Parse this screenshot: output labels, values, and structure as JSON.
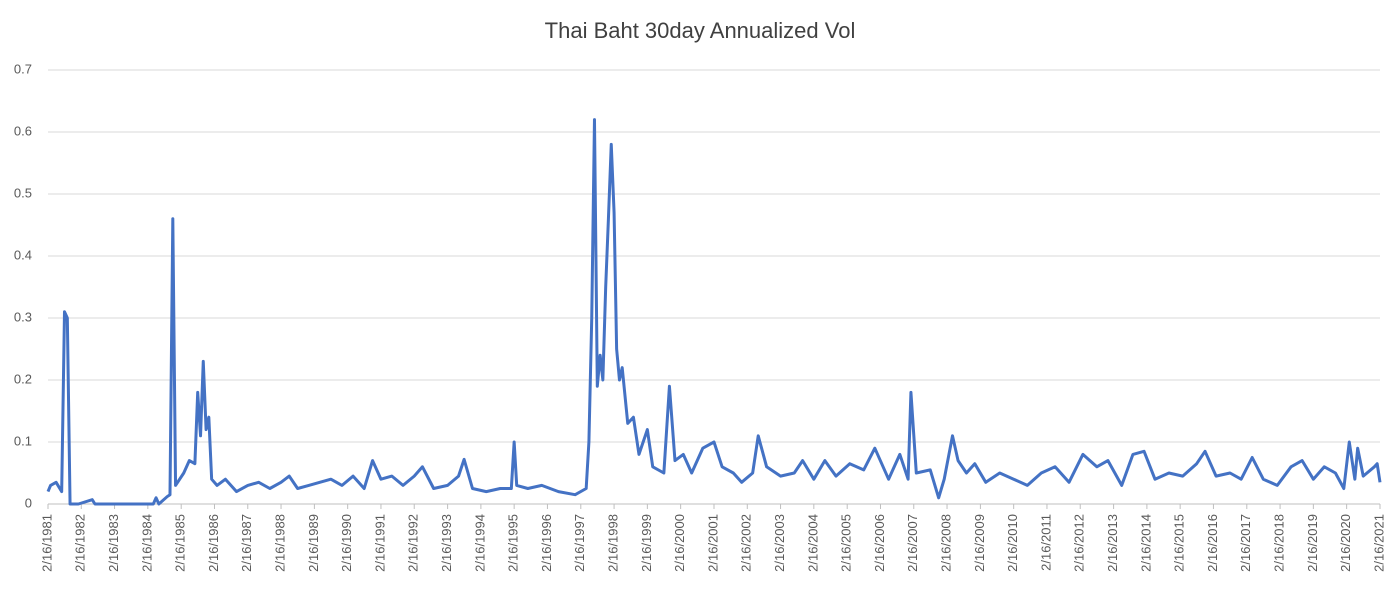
{
  "chart_data": {
    "type": "line",
    "title": "Thai Baht 30day Annualized Vol",
    "x": [
      "2/16/1981",
      "3/16/1981",
      "5/16/1981",
      "7/16/1981",
      "8/16/1981",
      "9/16/1981",
      "10/16/1981",
      "1/16/1982",
      "6/16/1982",
      "7/16/1982",
      "4/16/1984",
      "5/16/1984",
      "6/16/1984",
      "9/16/1984",
      "10/16/1984",
      "11/16/1984",
      "12/16/1984",
      "3/16/1985",
      "5/16/1985",
      "7/16/1985",
      "8/16/1985",
      "9/16/1985",
      "10/16/1985",
      "11/16/1985",
      "12/16/1985",
      "1/16/1986",
      "3/16/1986",
      "6/16/1986",
      "10/16/1986",
      "2/16/1987",
      "6/16/1987",
      "10/16/1987",
      "2/16/1988",
      "5/16/1988",
      "8/16/1988",
      "12/16/1988",
      "4/16/1989",
      "8/16/1989",
      "12/16/1989",
      "4/16/1990",
      "8/16/1990",
      "11/16/1990",
      "2/16/1991",
      "6/16/1991",
      "10/16/1991",
      "2/16/1992",
      "5/16/1992",
      "9/16/1992",
      "2/16/1993",
      "6/16/1993",
      "8/16/1993",
      "11/16/1993",
      "4/16/1994",
      "9/16/1994",
      "1/16/1995",
      "2/16/1995",
      "3/16/1995",
      "7/16/1995",
      "12/16/1995",
      "6/16/1996",
      "12/16/1996",
      "4/16/1997",
      "5/16/1997",
      "6/16/1997",
      "7/16/1997",
      "8/16/1997",
      "9/16/1997",
      "10/16/1997",
      "11/16/1997",
      "12/16/1997",
      "1/16/1998",
      "2/16/1998",
      "3/16/1998",
      "4/16/1998",
      "5/16/1998",
      "7/16/1998",
      "9/16/1998",
      "11/16/1998",
      "2/16/1999",
      "4/16/1999",
      "8/16/1999",
      "10/16/1999",
      "12/16/1999",
      "3/16/2000",
      "6/16/2000",
      "10/16/2000",
      "2/16/2001",
      "5/16/2001",
      "9/16/2001",
      "12/16/2001",
      "4/16/2002",
      "6/16/2002",
      "9/16/2002",
      "2/16/2003",
      "7/16/2003",
      "10/16/2003",
      "2/16/2004",
      "6/16/2004",
      "10/16/2004",
      "3/16/2005",
      "8/16/2005",
      "12/16/2005",
      "5/16/2006",
      "9/16/2006",
      "12/16/2006",
      "1/16/2007",
      "3/16/2007",
      "8/16/2007",
      "11/16/2007",
      "1/16/2008",
      "4/16/2008",
      "6/16/2008",
      "9/16/2008",
      "12/16/2008",
      "4/16/2009",
      "9/16/2009",
      "2/16/2010",
      "7/16/2010",
      "12/16/2010",
      "5/16/2011",
      "10/16/2011",
      "3/16/2012",
      "8/16/2012",
      "12/16/2012",
      "5/16/2013",
      "9/16/2013",
      "1/16/2014",
      "5/16/2014",
      "10/16/2014",
      "3/16/2015",
      "8/16/2015",
      "11/16/2015",
      "3/16/2016",
      "8/16/2016",
      "12/16/2016",
      "4/16/2017",
      "8/16/2017",
      "1/16/2018",
      "6/16/2018",
      "10/16/2018",
      "2/16/2019",
      "6/16/2019",
      "10/16/2019",
      "1/16/2020",
      "3/16/2020",
      "5/16/2020",
      "6/16/2020",
      "8/16/2020",
      "12/16/2020",
      "1/16/2021",
      "2/16/2021"
    ],
    "series": [
      {
        "color": "#4472c4",
        "values": [
          0.02,
          0.03,
          0.035,
          0.02,
          0.31,
          0.3,
          0,
          0,
          0.007,
          0,
          0,
          0.01,
          0,
          0.012,
          0.015,
          0.46,
          0.03,
          0.05,
          0.07,
          0.065,
          0.18,
          0.11,
          0.23,
          0.12,
          0.14,
          0.04,
          0.03,
          0.04,
          0.02,
          0.03,
          0.035,
          0.025,
          0.035,
          0.045,
          0.025,
          0.03,
          0.035,
          0.04,
          0.03,
          0.045,
          0.025,
          0.07,
          0.04,
          0.045,
          0.03,
          0.045,
          0.06,
          0.025,
          0.03,
          0.045,
          0.072,
          0.025,
          0.02,
          0.025,
          0.025,
          0.1,
          0.03,
          0.025,
          0.03,
          0.02,
          0.015,
          0.025,
          0.1,
          0.3,
          0.62,
          0.19,
          0.24,
          0.2,
          0.35,
          0.46,
          0.58,
          0.47,
          0.25,
          0.2,
          0.22,
          0.13,
          0.14,
          0.08,
          0.12,
          0.06,
          0.05,
          0.19,
          0.07,
          0.08,
          0.05,
          0.09,
          0.1,
          0.06,
          0.05,
          0.035,
          0.05,
          0.11,
          0.06,
          0.045,
          0.05,
          0.07,
          0.04,
          0.07,
          0.045,
          0.065,
          0.055,
          0.09,
          0.04,
          0.08,
          0.04,
          0.18,
          0.05,
          0.055,
          0.01,
          0.04,
          0.11,
          0.07,
          0.05,
          0.065,
          0.035,
          0.05,
          0.04,
          0.03,
          0.05,
          0.06,
          0.035,
          0.08,
          0.06,
          0.07,
          0.03,
          0.08,
          0.085,
          0.04,
          0.05,
          0.045,
          0.065,
          0.085,
          0.045,
          0.05,
          0.04,
          0.075,
          0.04,
          0.03,
          0.06,
          0.07,
          0.04,
          0.06,
          0.05,
          0.025,
          0.1,
          0.04,
          0.09,
          0.045,
          0.06,
          0.065,
          0.035
        ]
      }
    ],
    "xlim": [
      "2/16/1981",
      "2/16/2021"
    ],
    "xticks": [
      "2/16/1981",
      "2/16/1982",
      "2/16/1983",
      "2/16/1984",
      "2/16/1985",
      "2/16/1986",
      "2/16/1987",
      "2/16/1988",
      "2/16/1989",
      "2/16/1990",
      "2/16/1991",
      "2/16/1992",
      "2/16/1993",
      "2/16/1994",
      "2/16/1995",
      "2/16/1996",
      "2/16/1997",
      "2/16/1998",
      "2/16/1999",
      "2/16/2000",
      "2/16/2001",
      "2/16/2002",
      "2/16/2003",
      "2/16/2004",
      "2/16/2005",
      "2/16/2006",
      "2/16/2007",
      "2/16/2008",
      "2/16/2009",
      "2/16/2010",
      "2/16/2011",
      "2/16/2012",
      "2/16/2013",
      "2/16/2014",
      "2/16/2015",
      "2/16/2016",
      "2/16/2017",
      "2/16/2018",
      "2/16/2019",
      "2/16/2020",
      "2/16/2021"
    ],
    "ylim": [
      0,
      0.7
    ],
    "yticks": [
      0,
      0.1,
      0.2,
      0.3,
      0.4,
      0.5,
      0.6,
      0.7
    ],
    "grid": true
  }
}
